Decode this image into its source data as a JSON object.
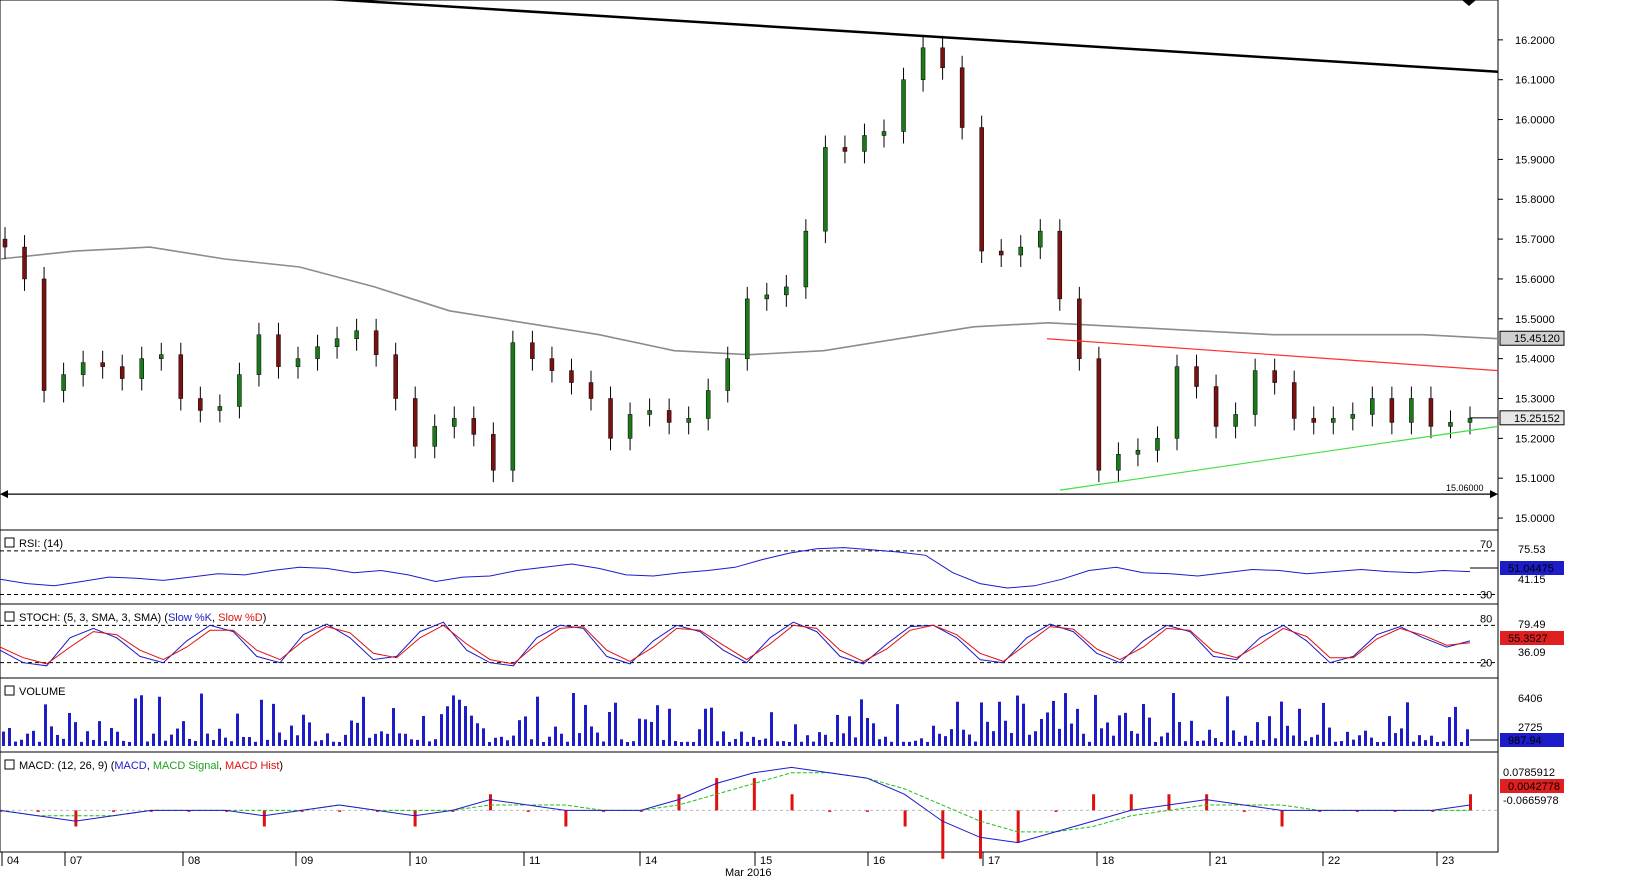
{
  "chart_data": {
    "type": "candlestick",
    "instrument_timeframe": "hourly",
    "date_axis": {
      "day_labels": [
        "04",
        "07",
        "08",
        "09",
        "10",
        "11",
        "14",
        "15",
        "16",
        "17",
        "18",
        "21",
        "22",
        "23"
      ],
      "month_label": "Mar 2016"
    },
    "price_panel": {
      "ylim": [
        15.0,
        16.25
      ],
      "yticks": [
        "15.0000",
        "15.1000",
        "15.2000",
        "15.3000",
        "15.4000",
        "15.5000",
        "15.6000",
        "15.7000",
        "15.8000",
        "15.9000",
        "16.0000",
        "16.1000",
        "16.2000"
      ],
      "last_price_label": "15.25152",
      "ma_label": "15.45120",
      "support_label": "15.06000",
      "support_level": 15.06,
      "ma200": [
        15.65,
        15.67,
        15.68,
        15.65,
        15.63,
        15.58,
        15.52,
        15.49,
        15.46,
        15.42,
        15.41,
        15.42,
        15.45,
        15.48,
        15.49,
        15.48,
        15.47,
        15.46,
        15.46,
        15.46,
        15.45
      ],
      "closes": [
        15.68,
        15.6,
        15.32,
        15.36,
        15.39,
        15.38,
        15.35,
        15.4,
        15.41,
        15.3,
        15.27,
        15.28,
        15.36,
        15.46,
        15.38,
        15.4,
        15.43,
        15.45,
        15.47,
        15.41,
        15.3,
        15.18,
        15.23,
        15.25,
        15.21,
        15.12,
        15.44,
        15.4,
        15.37,
        15.34,
        15.3,
        15.2,
        15.26,
        15.27,
        15.24,
        15.25,
        15.32,
        15.4,
        15.55,
        15.56,
        15.58,
        15.72,
        15.93,
        15.92,
        15.96,
        15.97,
        16.1,
        16.18,
        16.13,
        15.98,
        15.67,
        15.66,
        15.68,
        15.72,
        15.55,
        15.4,
        15.12,
        15.16,
        15.17,
        15.2,
        15.38,
        15.33,
        15.23,
        15.26,
        15.37,
        15.34,
        15.25,
        15.24,
        15.25,
        15.26,
        15.3,
        15.24,
        15.3,
        15.23,
        15.24,
        15.25
      ],
      "trendlines": {
        "upper_black": {
          "start": 16.31,
          "end": 16.12
        },
        "upper_red": {
          "start": 15.45,
          "end": 15.37
        },
        "lower_green": {
          "start": 15.07,
          "end": 15.23
        }
      }
    },
    "rsi": {
      "title": "RSI: (14)",
      "levels": [
        "70",
        "30"
      ],
      "top_label": "75.53",
      "bottom_label": "41.15",
      "value_label": "51.04475",
      "values": [
        44,
        40,
        38,
        42,
        46,
        45,
        43,
        46,
        49,
        48,
        52,
        55,
        54,
        50,
        52,
        48,
        42,
        46,
        47,
        52,
        55,
        58,
        54,
        48,
        47,
        50,
        52,
        55,
        62,
        68,
        72,
        73,
        71,
        69,
        66,
        50,
        40,
        36,
        38,
        44,
        52,
        55,
        50,
        49,
        47,
        50,
        53,
        52,
        49,
        51,
        53,
        51,
        50,
        52,
        51
      ]
    },
    "stoch": {
      "title": "STOCH: (5, 3, SMA, 3, SMA)",
      "k_name": "Slow %K",
      "d_name": "Slow %D",
      "levels": [
        "80",
        "20"
      ],
      "top_label": "79.49",
      "bottom_label": "36.09",
      "value_label": "55.3527",
      "k": [
        40,
        20,
        15,
        60,
        75,
        60,
        30,
        20,
        55,
        80,
        70,
        30,
        20,
        65,
        82,
        60,
        25,
        30,
        70,
        85,
        40,
        20,
        15,
        60,
        80,
        75,
        30,
        18,
        55,
        80,
        70,
        40,
        20,
        60,
        85,
        70,
        30,
        18,
        50,
        78,
        80,
        60,
        25,
        20,
        60,
        82,
        70,
        35,
        20,
        55,
        80,
        70,
        30,
        25,
        60,
        80,
        55,
        20,
        30,
        65,
        78,
        60,
        45,
        55
      ],
      "d": [
        45,
        28,
        18,
        45,
        70,
        65,
        40,
        25,
        45,
        72,
        72,
        40,
        25,
        55,
        78,
        68,
        35,
        28,
        60,
        80,
        50,
        25,
        18,
        50,
        75,
        78,
        40,
        22,
        45,
        75,
        72,
        48,
        25,
        50,
        80,
        75,
        40,
        22,
        42,
        72,
        80,
        65,
        35,
        22,
        50,
        78,
        74,
        42,
        25,
        45,
        75,
        72,
        38,
        28,
        50,
        75,
        62,
        28,
        28,
        58,
        75,
        64,
        48,
        52
      ]
    },
    "volume": {
      "title": "VOLUME",
      "top_label": "6406",
      "mid_label": "2725",
      "value_label": "987.94"
    },
    "macd": {
      "title_prefix": "MACD: (12, 26, 9) (",
      "macd_name": "MACD",
      "signal_name": "MACD Signal",
      "hist_name": "MACD Hist",
      "title_suffix": ")",
      "top_label": "0.0785912",
      "value_label": "0.0042778",
      "bottom_label": "-0.0665978",
      "macd": [
        0.0,
        -0.01,
        -0.02,
        -0.01,
        0.0,
        0.0,
        0.0,
        -0.01,
        0.0,
        0.01,
        0.0,
        -0.01,
        0.0,
        0.02,
        0.01,
        0.0,
        0.0,
        0.0,
        0.02,
        0.05,
        0.07,
        0.08,
        0.07,
        0.06,
        0.03,
        -0.02,
        -0.05,
        -0.06,
        -0.04,
        -0.02,
        0.0,
        0.01,
        0.02,
        0.01,
        0.0,
        0.0,
        0.0,
        0.0,
        0.0,
        0.01
      ],
      "signal": [
        0.0,
        -0.01,
        -0.01,
        -0.01,
        0.0,
        0.0,
        0.0,
        0.0,
        0.0,
        0.01,
        0.0,
        0.0,
        0.0,
        0.01,
        0.01,
        0.01,
        0.0,
        0.0,
        0.01,
        0.03,
        0.05,
        0.07,
        0.07,
        0.06,
        0.04,
        0.01,
        -0.02,
        -0.04,
        -0.04,
        -0.03,
        -0.01,
        0.0,
        0.01,
        0.01,
        0.01,
        0.0,
        0.0,
        0.0,
        0.0,
        0.0
      ]
    }
  },
  "colors": {
    "bull": "#1a7a1a",
    "bear": "#7a1010",
    "ma": "#8c8c8c",
    "rsi": "#1c1cc8",
    "stoch_k": "#1c1cc8",
    "stoch_d": "#e01010",
    "volume": "#1c1cc8",
    "macd": "#1c1cc8",
    "signal": "#20c020",
    "hist": "#e01010",
    "red_line": "#ff3030",
    "green_line": "#40e040",
    "label_blue": "#1c1cc8",
    "label_red": "#e02020"
  }
}
